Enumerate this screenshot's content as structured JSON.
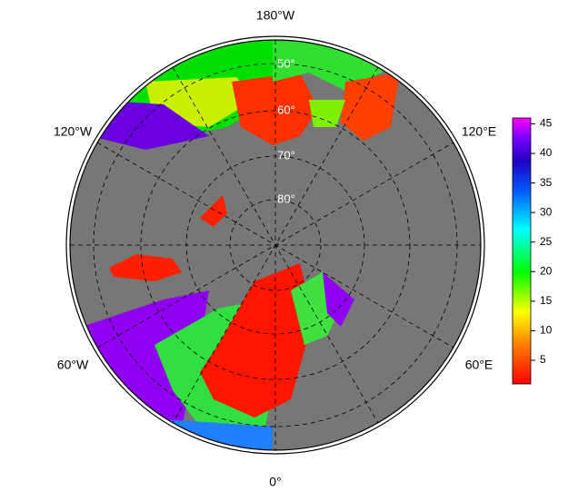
{
  "map": {
    "longitude_labels": [
      "180°W",
      "120°E",
      "60°E",
      "0°",
      "60°W",
      "120°W"
    ],
    "latitude_labels": [
      "50°",
      "60°",
      "70°",
      "80°"
    ],
    "colorbar": {
      "range": [
        1,
        46
      ],
      "ticks": [
        5,
        10,
        15,
        20,
        25,
        30,
        35,
        40,
        45
      ]
    }
  }
}
